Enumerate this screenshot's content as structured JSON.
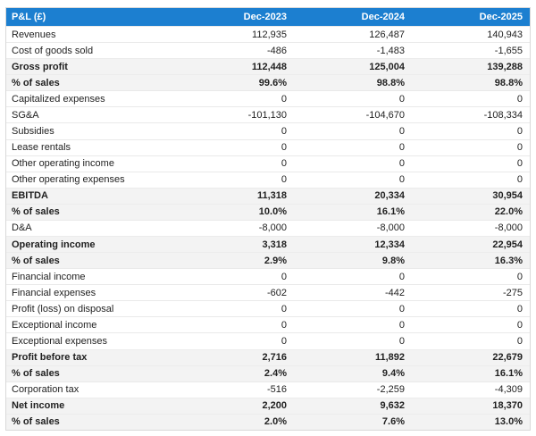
{
  "colors": {
    "header_bg": "#1c7fd0",
    "header_text": "#ffffff",
    "highlight_row_bg": "#f3f3f3",
    "body_text": "#1f1f1f"
  },
  "table": {
    "title": "P&L (£)",
    "columns": [
      "Dec-2023",
      "Dec-2024",
      "Dec-2025"
    ],
    "rows": [
      {
        "label": "Revenues",
        "values": [
          "112,935",
          "126,487",
          "140,943"
        ]
      },
      {
        "label": "Cost of goods sold",
        "values": [
          "-486",
          "-1,483",
          "-1,655"
        ]
      },
      {
        "label": "Gross profit",
        "values": [
          "112,448",
          "125,004",
          "139,288"
        ]
      },
      {
        "label": "% of sales",
        "values": [
          "99.6%",
          "98.8%",
          "98.8%"
        ]
      },
      {
        "label": "Capitalized expenses",
        "values": [
          "0",
          "0",
          "0"
        ]
      },
      {
        "label": "SG&A",
        "values": [
          "-101,130",
          "-104,670",
          "-108,334"
        ]
      },
      {
        "label": "Subsidies",
        "values": [
          "0",
          "0",
          "0"
        ]
      },
      {
        "label": "Lease rentals",
        "values": [
          "0",
          "0",
          "0"
        ]
      },
      {
        "label": "Other operating income",
        "values": [
          "0",
          "0",
          "0"
        ]
      },
      {
        "label": "Other operating expenses",
        "values": [
          "0",
          "0",
          "0"
        ]
      },
      {
        "label": "EBITDA",
        "values": [
          "11,318",
          "20,334",
          "30,954"
        ]
      },
      {
        "label": "% of sales",
        "values": [
          "10.0%",
          "16.1%",
          "22.0%"
        ]
      },
      {
        "label": "D&A",
        "values": [
          "-8,000",
          "-8,000",
          "-8,000"
        ]
      },
      {
        "label": "Operating income",
        "values": [
          "3,318",
          "12,334",
          "22,954"
        ]
      },
      {
        "label": "% of sales",
        "values": [
          "2.9%",
          "9.8%",
          "16.3%"
        ]
      },
      {
        "label": "Financial income",
        "values": [
          "0",
          "0",
          "0"
        ]
      },
      {
        "label": "Financial expenses",
        "values": [
          "-602",
          "-442",
          "-275"
        ]
      },
      {
        "label": "Profit (loss) on disposal",
        "values": [
          "0",
          "0",
          "0"
        ]
      },
      {
        "label": "Exceptional income",
        "values": [
          "0",
          "0",
          "0"
        ]
      },
      {
        "label": "Exceptional expenses",
        "values": [
          "0",
          "0",
          "0"
        ]
      },
      {
        "label": "Profit before tax",
        "values": [
          "2,716",
          "11,892",
          "22,679"
        ]
      },
      {
        "label": "% of sales",
        "values": [
          "2.4%",
          "9.4%",
          "16.1%"
        ]
      },
      {
        "label": "Corporation tax",
        "values": [
          "-516",
          "-2,259",
          "-4,309"
        ]
      },
      {
        "label": "Net income",
        "values": [
          "2,200",
          "9,632",
          "18,370"
        ]
      },
      {
        "label": "% of sales",
        "values": [
          "2.0%",
          "7.6%",
          "13.0%"
        ]
      }
    ]
  }
}
